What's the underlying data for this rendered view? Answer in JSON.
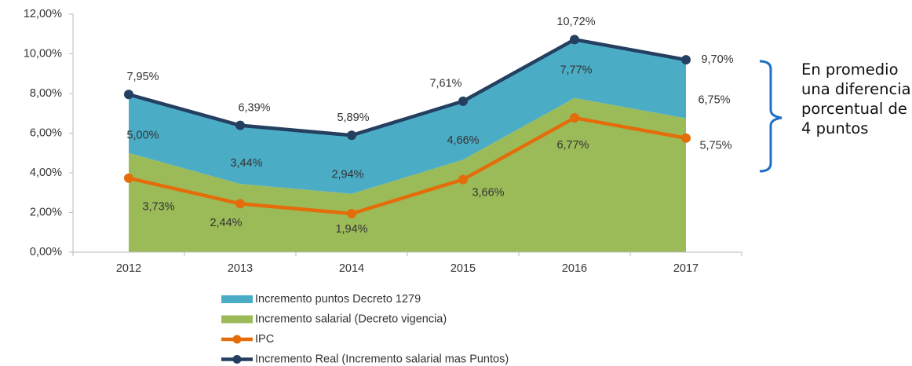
{
  "chart_data": {
    "type": "stacked-area-line",
    "categories": [
      "2012",
      "2013",
      "2014",
      "2015",
      "2016",
      "2017"
    ],
    "series": [
      {
        "name": "Incremento puntos Decreto 1279",
        "color": "#4bacc6",
        "kind": "area",
        "values": [
          2.95,
          2.95,
          2.95,
          2.95,
          2.95,
          2.95
        ]
      },
      {
        "name": "Incremento salarial (Decreto vigencia)",
        "color": "#9bbb59",
        "kind": "area",
        "values": [
          5.0,
          3.44,
          2.94,
          4.66,
          7.77,
          6.75
        ],
        "value_labels": [
          "5,00%",
          "3,44%",
          "2,94%",
          "4,66%",
          "7,77%",
          "6,75%"
        ]
      },
      {
        "name": "IPC",
        "color": "#e46c0a",
        "kind": "line",
        "values": [
          3.73,
          2.44,
          1.94,
          3.66,
          6.77,
          5.75
        ],
        "value_labels": [
          "3,73%",
          "2,44%",
          "1,94%",
          "3,66%",
          "6,77%",
          "5,75%"
        ]
      },
      {
        "name": "Incremento Real (Incremento salarial mas Puntos)",
        "color": "#243f60",
        "kind": "line",
        "values": [
          7.95,
          6.39,
          5.89,
          7.61,
          10.72,
          9.7
        ],
        "value_labels": [
          "7,95%",
          "6,39%",
          "5,89%",
          "7,61%",
          "10,72%",
          "9,70%"
        ]
      }
    ],
    "ylim": [
      0,
      12
    ],
    "yticks": [
      {
        "value": 0,
        "label": "0,00%"
      },
      {
        "value": 2,
        "label": "2,00%"
      },
      {
        "value": 4,
        "label": "4,00%"
      },
      {
        "value": 6,
        "label": "6,00%"
      },
      {
        "value": 8,
        "label": "8,00%"
      },
      {
        "value": 10,
        "label": "10,00%"
      },
      {
        "value": 12,
        "label": "12,00%"
      }
    ],
    "annotation": "En promedio una diferencia porcentual de 4 puntos"
  }
}
